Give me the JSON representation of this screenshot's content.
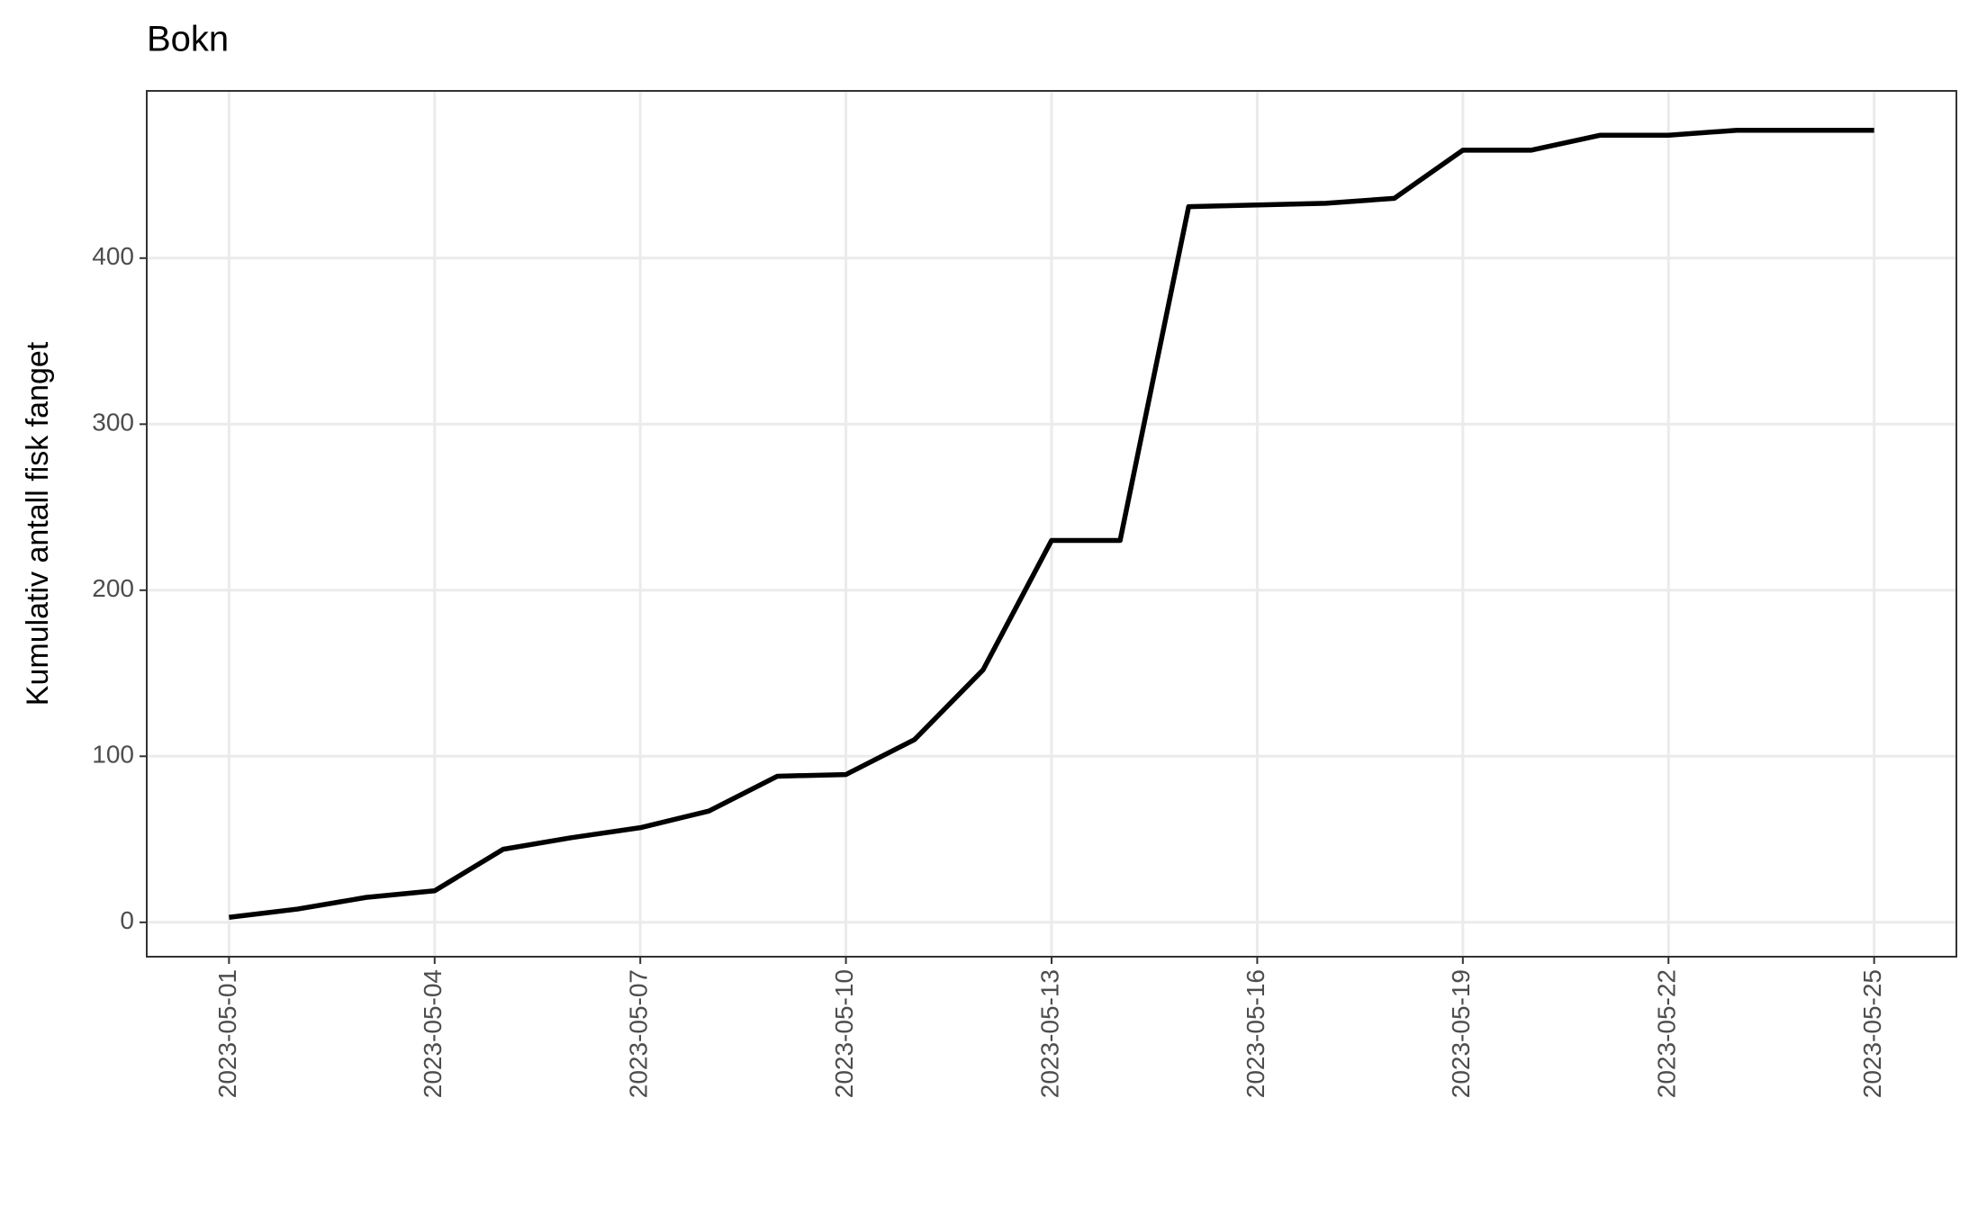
{
  "chart_data": {
    "type": "line",
    "title": "Bokn",
    "y_label": "Kumulativ antall fisk fanget",
    "x": [
      "2023-05-01",
      "2023-05-02",
      "2023-05-03",
      "2023-05-04",
      "2023-05-05",
      "2023-05-06",
      "2023-05-07",
      "2023-05-08",
      "2023-05-09",
      "2023-05-10",
      "2023-05-11",
      "2023-05-12",
      "2023-05-13",
      "2023-05-14",
      "2023-05-15",
      "2023-05-16",
      "2023-05-17",
      "2023-05-18",
      "2023-05-19",
      "2023-05-20",
      "2023-05-21",
      "2023-05-22",
      "2023-05-23",
      "2023-05-24",
      "2023-05-25"
    ],
    "series": [
      {
        "color": "#000000",
        "values": [
          3,
          8,
          15,
          19,
          44,
          51,
          57,
          67,
          88,
          89,
          110,
          152,
          230,
          230,
          431,
          432,
          433,
          436,
          465,
          465,
          474,
          474,
          477,
          477,
          477
        ]
      }
    ],
    "ylim": [
      -20.7,
      500.7
    ],
    "yticks": [
      0,
      100,
      200,
      300,
      400
    ],
    "xticks": [
      "2023-05-01",
      "2023-05-04",
      "2023-05-07",
      "2023-05-10",
      "2023-05-13",
      "2023-05-16",
      "2023-05-19",
      "2023-05-22",
      "2023-05-25"
    ],
    "grid": true
  }
}
